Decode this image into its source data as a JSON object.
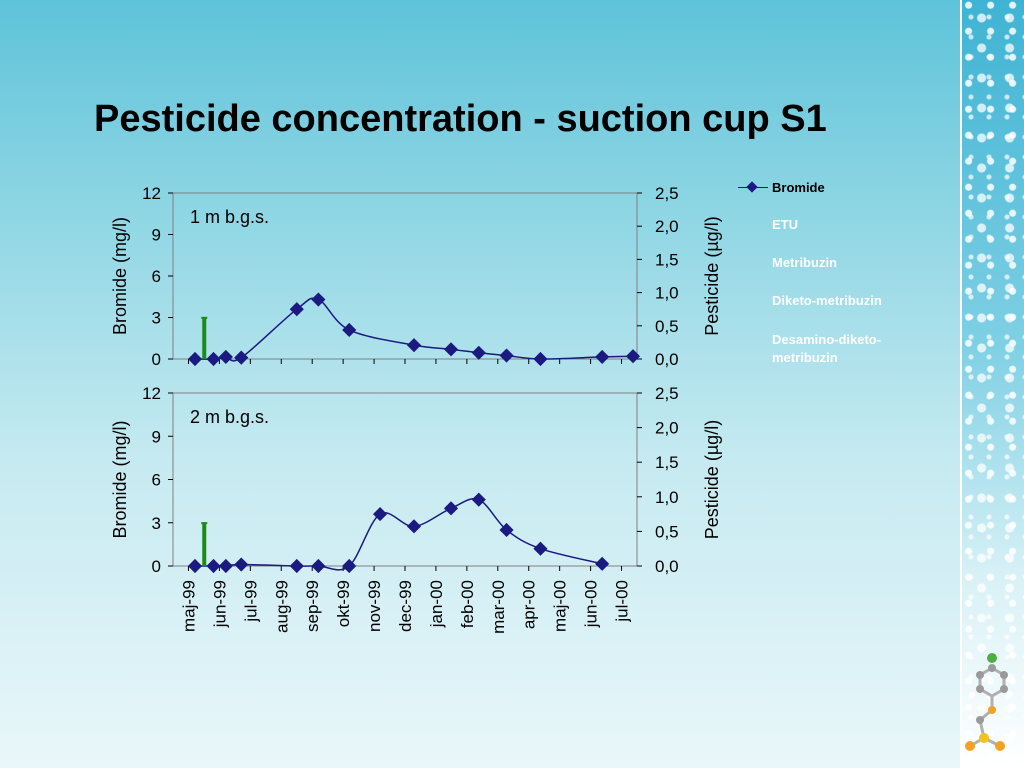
{
  "title": "Pesticide concentration - suction cup S1",
  "legend": [
    {
      "label": "Bromide",
      "color": "#1a1a80"
    },
    {
      "label": "ETU",
      "color": "#ffffff"
    },
    {
      "label": "Metribuzin",
      "color": "#ffffff"
    },
    {
      "label": "Diketo-metribuzin",
      "color": "#ffffff"
    },
    {
      "label": "Desamino-diketo-metribuzin",
      "color": "#ffffff"
    }
  ],
  "colors": {
    "bromide_series": "#1a1a80",
    "pesticide_bar": "#1a8a1a",
    "plot_border": "#808080"
  },
  "chart_data": [
    {
      "type": "line",
      "panel_label": "1 m b.g.s.",
      "ylabel": "Bromide (mg/l)",
      "y2label": "Pesticide (µg/l)",
      "ylim": [
        0,
        12
      ],
      "y_ticks": [
        "0",
        "3",
        "6",
        "9",
        "12"
      ],
      "y2lim": [
        0,
        2.5
      ],
      "y2_ticks": [
        "0,0",
        "0,5",
        "1,0",
        "1,5",
        "2,0",
        "2,5"
      ],
      "xlim": [
        0,
        14.2
      ],
      "series": [
        {
          "name": "Bromide",
          "x": [
            0.0,
            0.6,
            1.0,
            1.5,
            3.3,
            4.0,
            5.0,
            7.1,
            8.3,
            9.2,
            10.1,
            11.2,
            13.2,
            14.2
          ],
          "values": [
            0.0,
            0.0,
            0.15,
            0.1,
            3.6,
            4.3,
            2.1,
            1.0,
            0.7,
            0.45,
            0.25,
            0.0,
            0.15,
            0.2
          ]
        },
        {
          "name": "Pesticide",
          "type": "bar",
          "x": [
            0.3
          ],
          "values": [
            0.62
          ]
        }
      ]
    },
    {
      "type": "line",
      "panel_label": "2 m b.g.s.",
      "ylabel": "Bromide (mg/l)",
      "y2label": "Pesticide (µg/l)",
      "ylim": [
        0,
        12
      ],
      "y_ticks": [
        "0",
        "3",
        "6",
        "9",
        "12"
      ],
      "y2lim": [
        0,
        2.5
      ],
      "y2_ticks": [
        "0,0",
        "0,5",
        "1,0",
        "1,5",
        "2,0",
        "2,5"
      ],
      "xlim": [
        0,
        14.2
      ],
      "categories": [
        "maj-99",
        "jun-99",
        "jul-99",
        "aug-99",
        "sep-99",
        "okt-99",
        "nov-99",
        "dec-99",
        "jan-00",
        "feb-00",
        "mar-00",
        "apr-00",
        "maj-00",
        "jun-00",
        "jul-00"
      ],
      "series": [
        {
          "name": "Bromide",
          "x": [
            0.0,
            0.6,
            1.0,
            1.5,
            3.3,
            4.0,
            5.0,
            6.0,
            7.1,
            8.3,
            9.2,
            10.1,
            11.2,
            13.2
          ],
          "values": [
            0.0,
            0.0,
            0.0,
            0.1,
            0.0,
            0.0,
            0.0,
            3.6,
            2.75,
            4.0,
            4.6,
            2.5,
            1.2,
            0.15
          ]
        },
        {
          "name": "Pesticide",
          "type": "bar",
          "x": [
            0.3
          ],
          "values": [
            0.62
          ]
        }
      ]
    }
  ]
}
